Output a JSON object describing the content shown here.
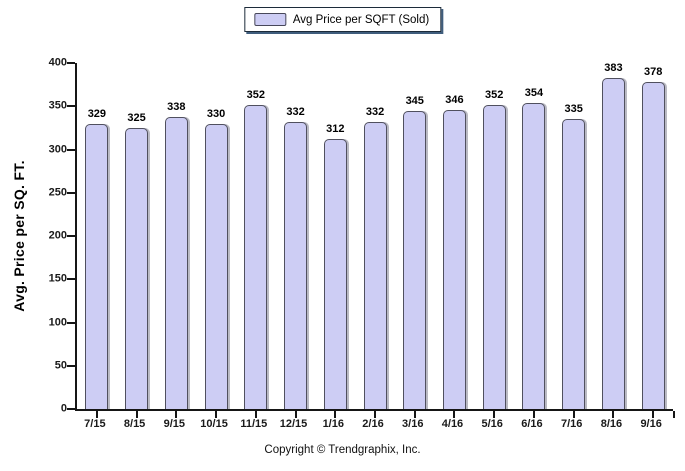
{
  "legend": {
    "label": "Avg Price per SQFT (Sold)"
  },
  "footer": {
    "copyright": "Copyright © Trendgraphix, Inc."
  },
  "chart_data": {
    "type": "bar",
    "title": "",
    "xlabel": "",
    "ylabel": "Avg. Price per SQ. FT.",
    "categories": [
      "7/15",
      "8/15",
      "9/15",
      "10/15",
      "11/15",
      "12/15",
      "1/16",
      "2/16",
      "3/16",
      "4/16",
      "5/16",
      "6/16",
      "7/16",
      "8/16",
      "9/16"
    ],
    "series": [
      {
        "name": "Avg Price per SQFT (Sold)",
        "values": [
          329,
          325,
          338,
          330,
          352,
          332,
          312,
          332,
          345,
          346,
          352,
          354,
          335,
          383,
          378
        ]
      }
    ],
    "ylim": [
      0,
      400
    ],
    "ytick_step": 50,
    "yticks": [
      0,
      50,
      100,
      150,
      200,
      250,
      300,
      350,
      400
    ],
    "grid": false,
    "legend_position": "top-center",
    "value_labels": "above-bars",
    "colors": {
      "bar_fill": "#cdcdf4",
      "bar_border": "#50505e",
      "axis": "#161616",
      "text": "#000000",
      "legend_shadow": "#3f5d7d"
    }
  }
}
